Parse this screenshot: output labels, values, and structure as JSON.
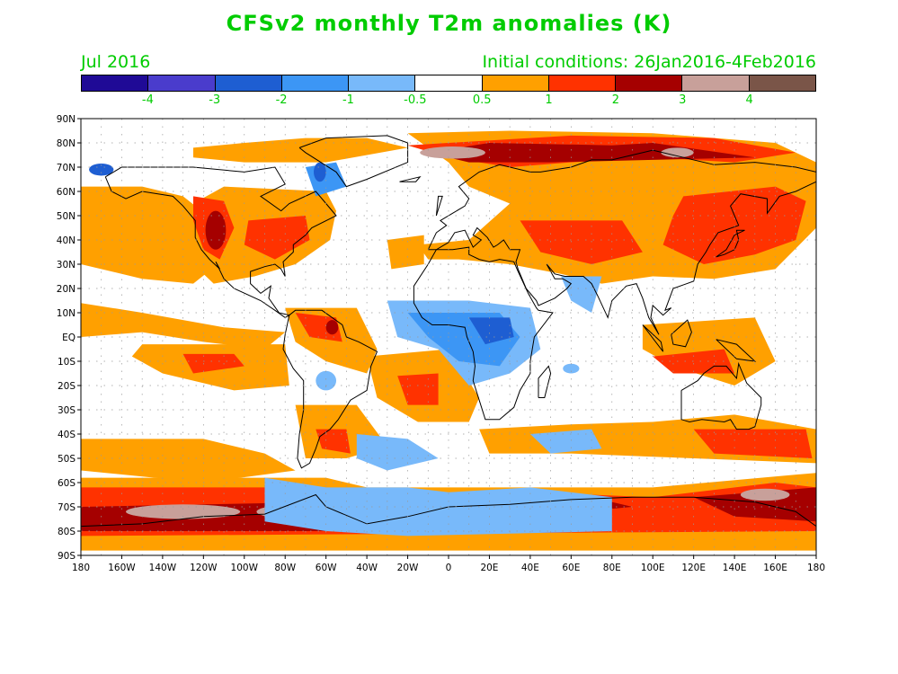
{
  "title": "CFSv2 monthly T2m anomalies (K)",
  "valid_month": "Jul 2016",
  "initial_conditions": "Initial conditions: 26Jan2016-4Feb2016",
  "text_color": "#00cc00",
  "colorbar": {
    "colors": [
      "#1f0a96",
      "#4a3ccc",
      "#1e5ed2",
      "#3c96f5",
      "#78b9fa",
      "#ffffff",
      "#ffa000",
      "#ff3200",
      "#a50000",
      "#c8a09a",
      "#7a5548"
    ],
    "labels": [
      "-4",
      "-3",
      "-2",
      "-1",
      "-0.5",
      "0.5",
      "1",
      "2",
      "3",
      "4"
    ]
  },
  "map": {
    "lat_labels": [
      "90N",
      "80N",
      "70N",
      "60N",
      "50N",
      "40N",
      "30N",
      "20N",
      "10N",
      "EQ",
      "10S",
      "20S",
      "30S",
      "40S",
      "50S",
      "60S",
      "70S",
      "80S",
      "90S"
    ],
    "lon_labels": [
      "180",
      "160W",
      "140W",
      "120W",
      "100W",
      "80W",
      "60W",
      "40W",
      "20W",
      "0",
      "20E",
      "40E",
      "60E",
      "80E",
      "100E",
      "120E",
      "140E",
      "160E",
      "180"
    ]
  }
}
